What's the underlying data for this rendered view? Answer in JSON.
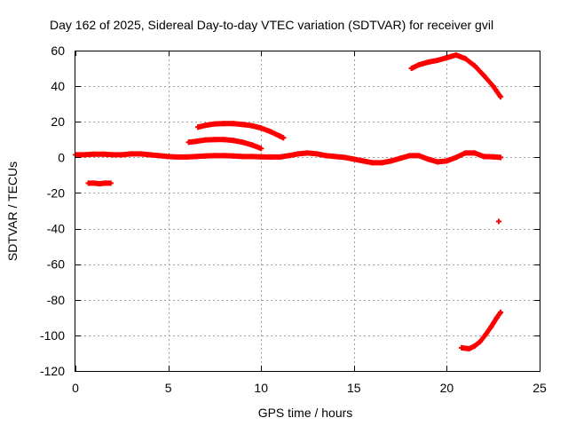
{
  "chart_data": {
    "type": "scatter",
    "title": "Day 162 of 2025, Sidereal Day-to-day VTEC variation (SDTVAR) for receiver gvil",
    "xlabel": "GPS time / hours",
    "ylabel": "SDTVAR / TECUs",
    "xlim": [
      0,
      25
    ],
    "ylim": [
      -120,
      60
    ],
    "xticks": [
      0,
      5,
      10,
      15,
      20,
      25
    ],
    "yticks": [
      -120,
      -100,
      -80,
      -60,
      -40,
      -20,
      0,
      20,
      40,
      60
    ],
    "grid": true,
    "marker": "plus",
    "series_color": "#ff0000",
    "series": [
      {
        "name": "main-near-zero",
        "x": [
          0.0,
          0.5,
          1.0,
          1.5,
          2.0,
          2.5,
          3.0,
          3.5,
          4.0,
          4.5,
          5.0,
          5.5,
          6.0,
          6.5,
          7.0,
          7.5,
          8.0,
          8.5,
          9.0,
          9.5,
          10.0,
          10.5,
          11.0,
          11.5,
          12.0,
          12.5,
          13.0,
          13.5,
          14.0,
          14.5,
          15.0,
          15.5,
          16.0,
          16.5,
          17.0,
          17.5,
          18.0,
          18.5,
          19.0,
          19.5,
          20.0,
          20.5,
          21.0,
          21.5,
          22.0,
          22.5,
          22.9
        ],
        "y": [
          1.5,
          1.5,
          1.8,
          1.8,
          1.5,
          1.5,
          2.0,
          2.0,
          1.5,
          1.0,
          0.5,
          0.2,
          0.2,
          0.5,
          0.8,
          1.0,
          1.0,
          0.8,
          0.5,
          0.5,
          0.3,
          0.2,
          0.2,
          1.0,
          2.0,
          2.5,
          2.0,
          1.0,
          0.5,
          0.0,
          -1.0,
          -2.0,
          -3.0,
          -3.0,
          -2.0,
          -0.5,
          1.0,
          1.0,
          -1.0,
          -2.5,
          -2.0,
          0.0,
          2.5,
          2.5,
          0.5,
          0.3,
          0.0
        ]
      },
      {
        "name": "arc-upper-left",
        "x": [
          6.6,
          7.0,
          7.5,
          8.0,
          8.5,
          9.0,
          9.5,
          10.0,
          10.5,
          11.0,
          11.2
        ],
        "y": [
          17.0,
          18.0,
          18.8,
          19.0,
          19.0,
          18.5,
          17.8,
          16.5,
          14.5,
          12.0,
          11.0
        ]
      },
      {
        "name": "arc-mid-left",
        "x": [
          6.1,
          6.5,
          7.0,
          7.5,
          8.0,
          8.5,
          9.0,
          9.5,
          10.0
        ],
        "y": [
          8.5,
          9.0,
          9.8,
          10.0,
          10.0,
          9.5,
          8.5,
          7.0,
          5.0
        ]
      },
      {
        "name": "offset-segment",
        "x": [
          0.7,
          1.0,
          1.3,
          1.6,
          1.9
        ],
        "y": [
          -14.5,
          -14.5,
          -14.8,
          -14.5,
          -14.5
        ]
      },
      {
        "name": "arc-top-right",
        "x": [
          18.1,
          18.5,
          19.0,
          19.5,
          20.0,
          20.5,
          21.0,
          21.5,
          22.0,
          22.5,
          22.9
        ],
        "y": [
          50.0,
          52.0,
          53.5,
          54.5,
          56.0,
          57.5,
          55.5,
          51.5,
          46.0,
          40.0,
          34.0
        ]
      },
      {
        "name": "arc-bottom-right",
        "x": [
          20.8,
          21.2,
          21.5,
          21.8,
          22.1,
          22.4,
          22.7,
          22.9
        ],
        "y": [
          -107.0,
          -107.5,
          -106.0,
          -103.5,
          -99.5,
          -95.0,
          -90.0,
          -87.0
        ]
      },
      {
        "name": "outlier",
        "x": [
          22.8
        ],
        "y": [
          -36.0
        ]
      }
    ]
  }
}
